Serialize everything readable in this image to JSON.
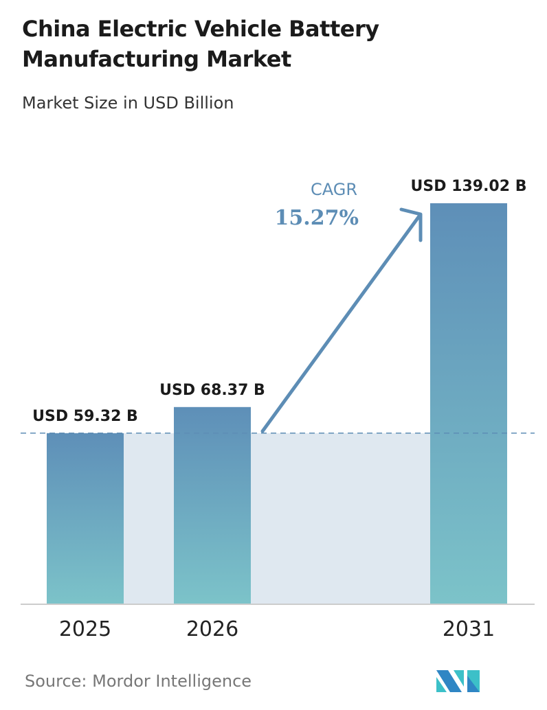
{
  "chart_data": {
    "type": "bar",
    "title": "China Electric Vehicle Battery Manufacturing Market",
    "subtitle": "Market Size in USD Billion",
    "categories": [
      "2025",
      "2026",
      "2031"
    ],
    "values": [
      59.32,
      68.37,
      139.02
    ],
    "data_labels": [
      "USD 59.32 B",
      "USD 68.37 B",
      "USD 139.02 B"
    ],
    "ylim": [
      0,
      139.02
    ],
    "cagr_label": "CAGR",
    "cagr_value": "15.27%",
    "source": "Source:  Mordor Intelligence",
    "colors": {
      "bar_top": "#5e8fb8",
      "bar_bottom": "#7cc3c9",
      "shade": "#dfe8f0",
      "accent": "#5d8db5"
    }
  }
}
